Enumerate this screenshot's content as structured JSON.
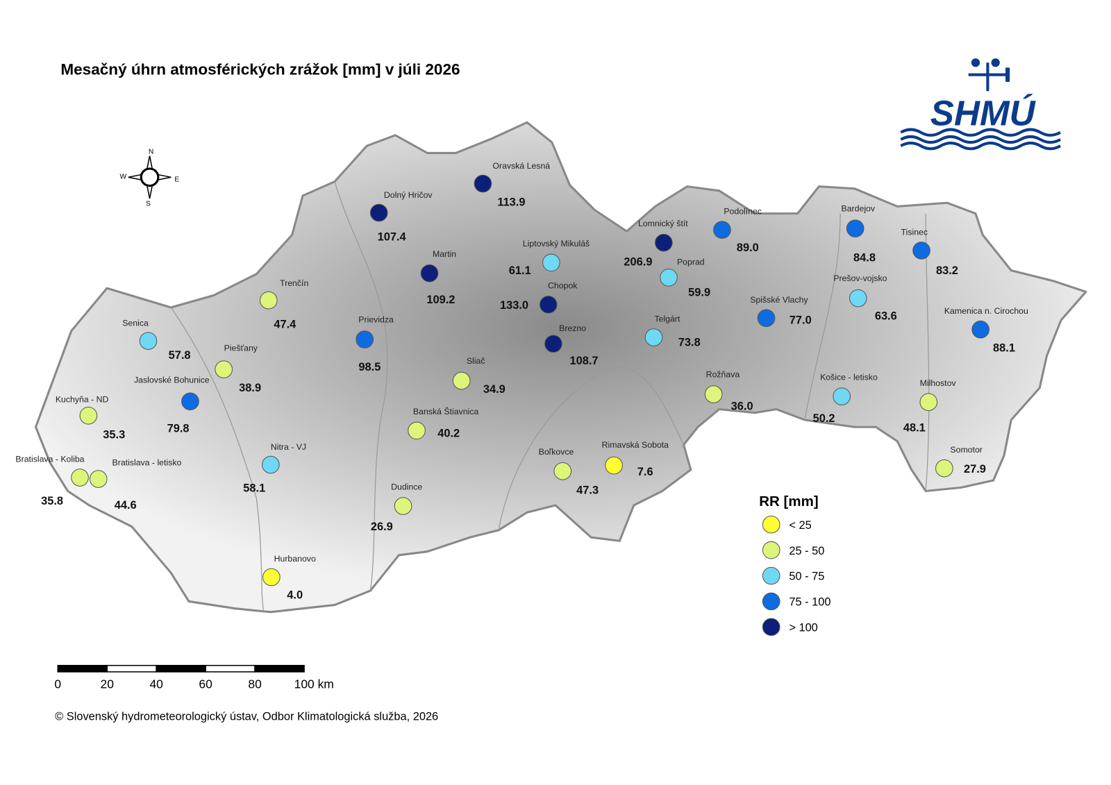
{
  "title": "Mesačný úhrn atmosférických zrážok [mm] v júli 2026",
  "logo": "SHMÚ",
  "compass": {
    "n": "N",
    "s": "S",
    "e": "E",
    "w": "W"
  },
  "stations": [
    {
      "name": "Oravská Lesná",
      "value": "113.9",
      "color": "#0c1f7a"
    },
    {
      "name": "Dolný Hričov",
      "value": "107.4",
      "color": "#0c1f7a"
    },
    {
      "name": "Martin",
      "value": "109.2",
      "color": "#0c1f7a"
    },
    {
      "name": "Liptovský Mikuláš",
      "value": "61.1",
      "color": "#6fd8f5"
    },
    {
      "name": "Chopok",
      "value": "133.0",
      "color": "#0c1f7a"
    },
    {
      "name": "Lomnický štít",
      "value": "206.9",
      "color": "#0c1f7a"
    },
    {
      "name": "Podolínec",
      "value": "89.0",
      "color": "#0f6be0"
    },
    {
      "name": "Poprad",
      "value": "59.9",
      "color": "#6fd8f5"
    },
    {
      "name": "Telgárt",
      "value": "73.8",
      "color": "#6fd8f5"
    },
    {
      "name": "Brezno",
      "value": "108.7",
      "color": "#0c1f7a"
    },
    {
      "name": "Spišské Vlachy",
      "value": "77.0",
      "color": "#0f6be0"
    },
    {
      "name": "Bardejov",
      "value": "84.8",
      "color": "#0f6be0"
    },
    {
      "name": "Tisinec",
      "value": "83.2",
      "color": "#0f6be0"
    },
    {
      "name": "Prešov-vojsko",
      "value": "63.6",
      "color": "#6fd8f5"
    },
    {
      "name": "Kamenica n. Cirochou",
      "value": "88.1",
      "color": "#0f6be0"
    },
    {
      "name": "Košice - letisko",
      "value": "50.2",
      "color": "#6fd8f5"
    },
    {
      "name": "Milhostov",
      "value": "48.1",
      "color": "#dcf57a"
    },
    {
      "name": "Somotor",
      "value": "27.9",
      "color": "#dcf57a"
    },
    {
      "name": "Rožňava",
      "value": "36.0",
      "color": "#dcf57a"
    },
    {
      "name": "Rimavská Sobota",
      "value": "7.6",
      "color": "#ffff33"
    },
    {
      "name": "Boľkovce",
      "value": "47.3",
      "color": "#dcf57a"
    },
    {
      "name": "Dudince",
      "value": "26.9",
      "color": "#dcf57a"
    },
    {
      "name": "Banská Štiavnica",
      "value": "40.2",
      "color": "#dcf57a"
    },
    {
      "name": "Sliač",
      "value": "34.9",
      "color": "#dcf57a"
    },
    {
      "name": "Prievidza",
      "value": "98.5",
      "color": "#0f6be0"
    },
    {
      "name": "Trenčín",
      "value": "47.4",
      "color": "#dcf57a"
    },
    {
      "name": "Senica",
      "value": "57.8",
      "color": "#6fd8f5"
    },
    {
      "name": "Piešťany",
      "value": "38.9",
      "color": "#dcf57a"
    },
    {
      "name": "Jaslovské Bohunice",
      "value": "79.8",
      "color": "#0f6be0"
    },
    {
      "name": "Kuchyňa - ND",
      "value": "35.3",
      "color": "#dcf57a"
    },
    {
      "name": "Bratislava - Koliba",
      "value": "35.8",
      "color": "#dcf57a"
    },
    {
      "name": "Bratislava - letisko",
      "value": "44.6",
      "color": "#dcf57a"
    },
    {
      "name": "Nitra - VJ",
      "value": "58.1",
      "color": "#6fd8f5"
    },
    {
      "name": "Hurbanovo",
      "value": "4.0",
      "color": "#ffff33"
    }
  ],
  "legend": {
    "title": "RR [mm]",
    "classes": [
      {
        "label": "< 25",
        "color": "#ffff33"
      },
      {
        "label": "25 - 50",
        "color": "#dcf57a"
      },
      {
        "label": "50 - 75",
        "color": "#6fd8f5"
      },
      {
        "label": "75 - 100",
        "color": "#0f6be0"
      },
      {
        "label": "> 100",
        "color": "#0c1f7a"
      }
    ]
  },
  "scale_bar": {
    "ticks": [
      0,
      20,
      40,
      60,
      80,
      {
        "value": 100,
        "label": "100 km"
      }
    ]
  },
  "footer": "© Slovenský hydrometeorologický ústav, Odbor Klimatologická služba, 2026"
}
